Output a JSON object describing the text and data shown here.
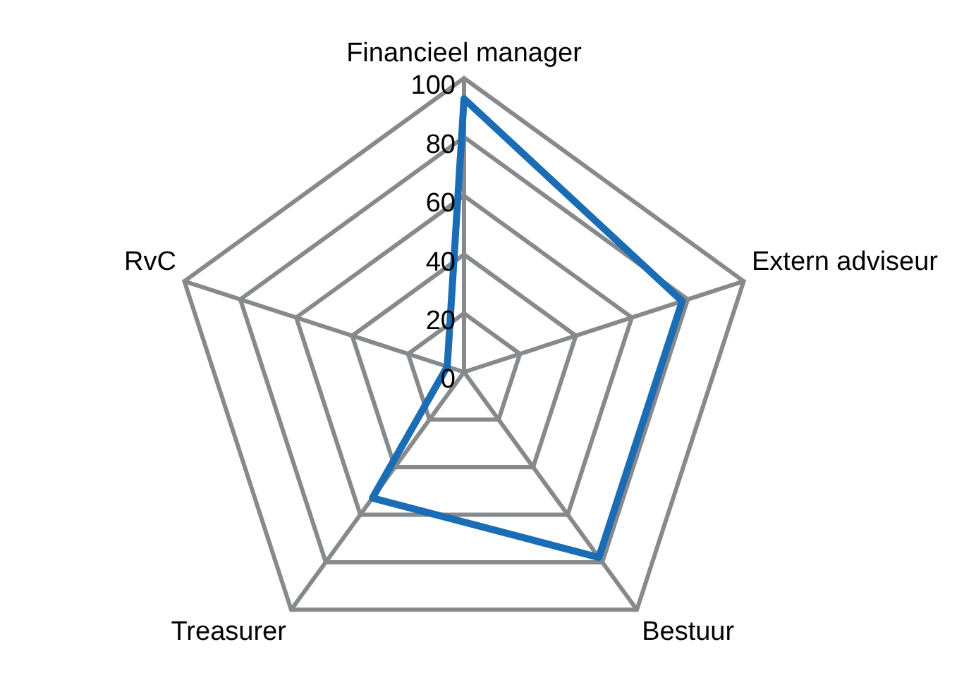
{
  "chart_data": {
    "type": "radar",
    "categories": [
      "Financieel manager",
      "Extern adviseur",
      "Bestuur",
      "Treasurer",
      "RvC"
    ],
    "series": [
      {
        "color": "#1a6db5",
        "values": [
          93,
          78,
          78,
          53,
          6
        ]
      }
    ],
    "ylim": [
      0,
      100
    ],
    "yticks": [
      0,
      20,
      40,
      60,
      80,
      100
    ],
    "grid": true,
    "legend": false,
    "marker": "none"
  }
}
